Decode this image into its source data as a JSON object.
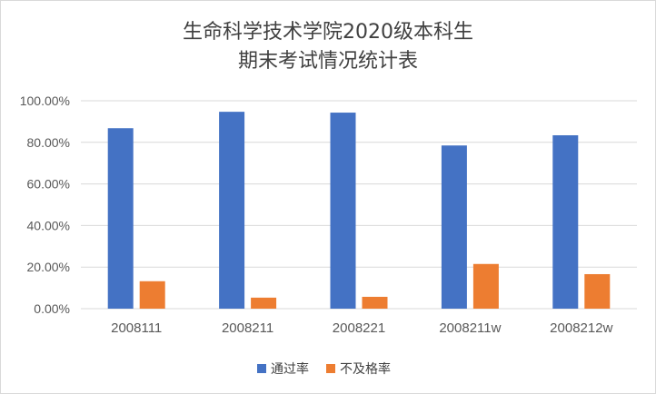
{
  "chart_data": {
    "type": "bar",
    "title_lines": [
      "生命科学技术学院2020级本科生",
      "期末考试情况统计表"
    ],
    "categories": [
      "2008111",
      "2008211",
      "2008221",
      "2008211w",
      "2008212w"
    ],
    "series": [
      {
        "name": "通过率",
        "color": "#4472c4",
        "values": [
          86.8,
          94.7,
          94.3,
          78.5,
          83.4
        ]
      },
      {
        "name": "不及格率",
        "color": "#ed7d31",
        "values": [
          13.2,
          5.3,
          5.7,
          21.5,
          16.6
        ]
      }
    ],
    "yticks": [
      "0.00%",
      "20.00%",
      "40.00%",
      "60.00%",
      "80.00%",
      "100.00%"
    ],
    "ylim": [
      0,
      100
    ],
    "grid": true,
    "legend_position": "bottom"
  }
}
